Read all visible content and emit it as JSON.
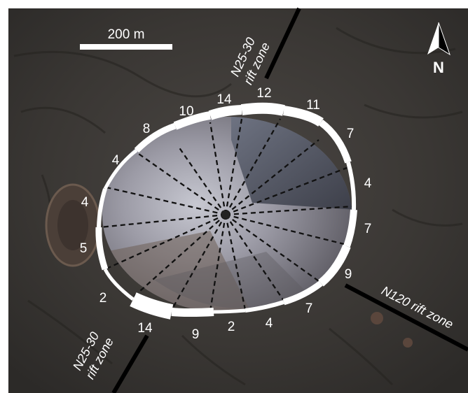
{
  "map": {
    "scale_bar_label": "200 m",
    "north_label": "N",
    "rift_zones": [
      {
        "line1": "N25-30",
        "line2": "rift zone"
      },
      {
        "line1": "N120 rift zone"
      },
      {
        "line1": "N25-30",
        "line2": "rift zone"
      }
    ],
    "sector_numbers": [
      "10",
      "14",
      "12",
      "11",
      "8",
      "7",
      "4",
      "4",
      "4",
      "7",
      "5",
      "9",
      "2",
      "7",
      "4",
      "2",
      "14",
      "9"
    ]
  }
}
